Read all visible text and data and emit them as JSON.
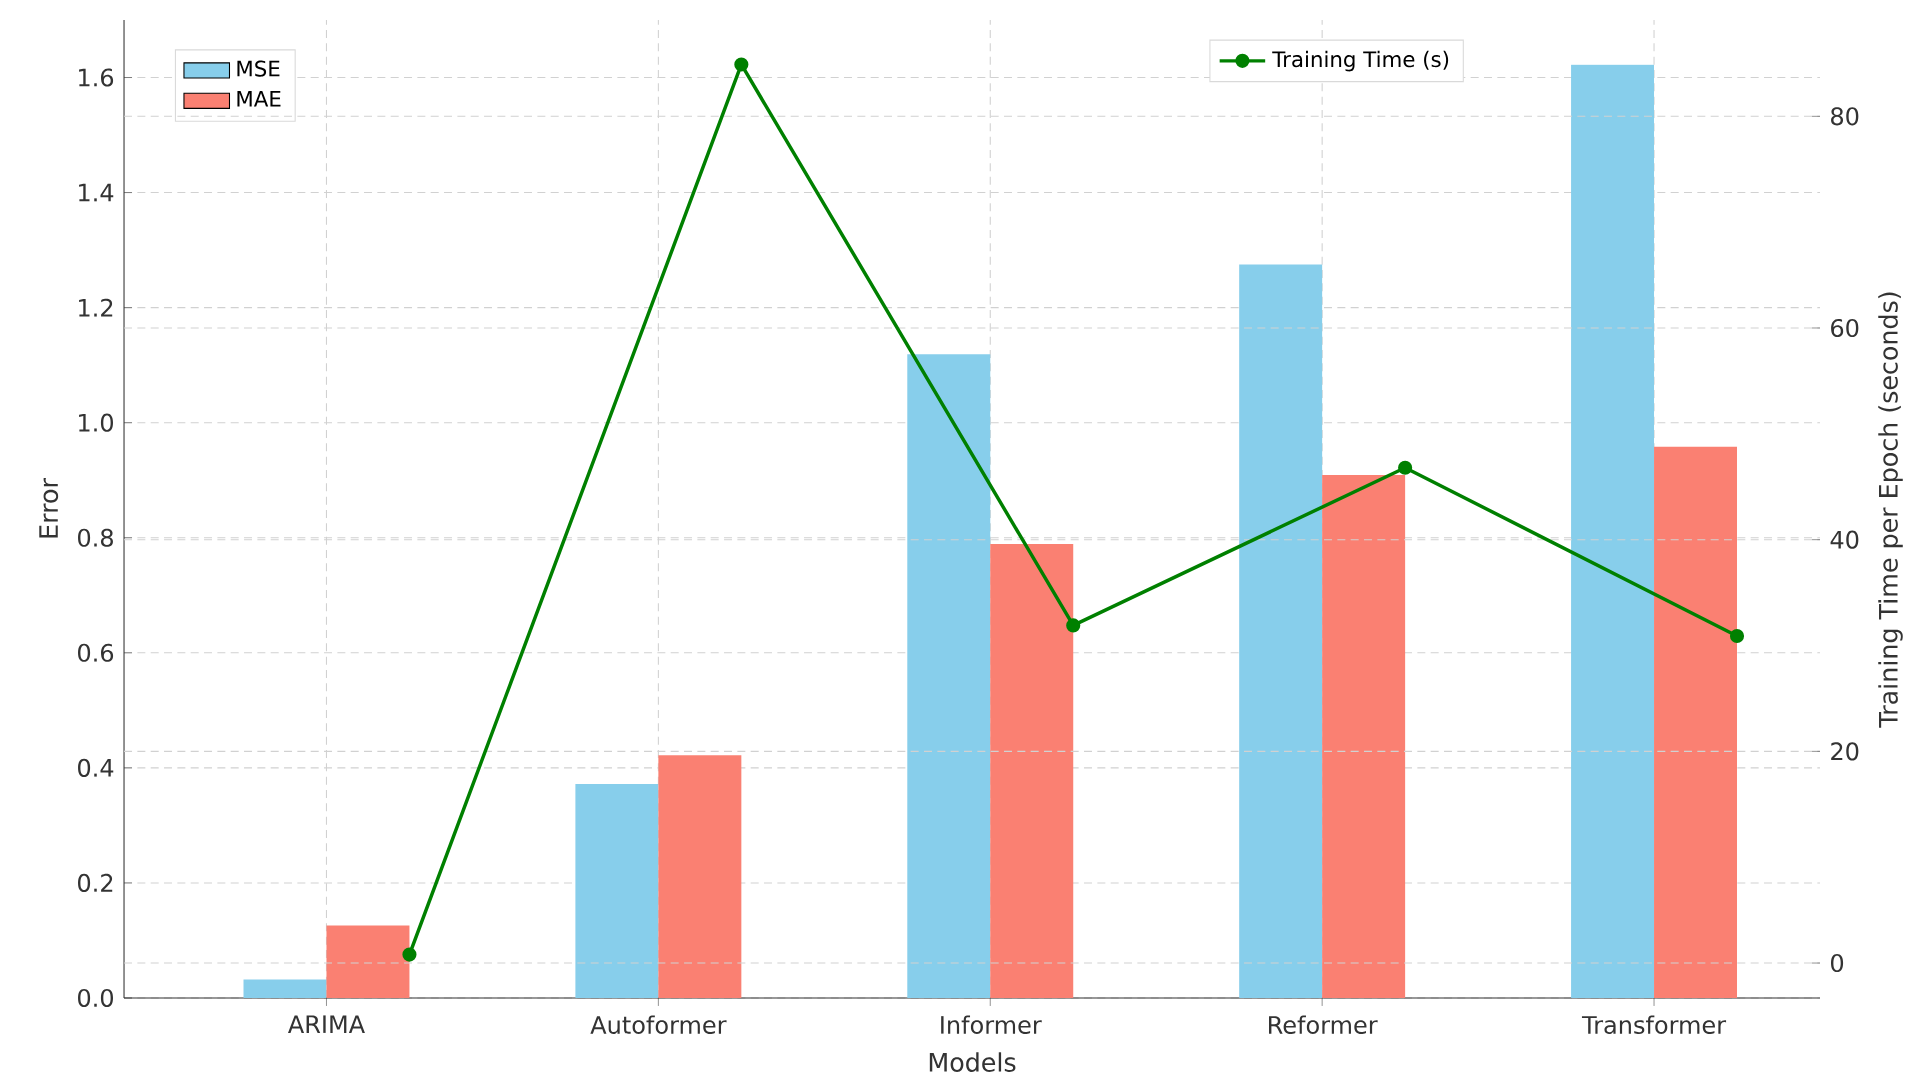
{
  "chart_data": {
    "type": "bar",
    "xlabel": "Models",
    "ylabel": "Error",
    "y2label": "Training Time per Epoch (seconds)",
    "categories": [
      "ARIMA",
      "Autoformer",
      "Informer",
      "Reformer",
      "Transformer"
    ],
    "series": [
      {
        "name": "MSE",
        "color": "#87ceeb",
        "values": [
          0.032,
          0.372,
          1.119,
          1.275,
          1.622
        ]
      },
      {
        "name": "MAE",
        "color": "#fa8072",
        "values": [
          0.126,
          0.422,
          0.789,
          0.909,
          0.958
        ]
      },
      {
        "name": "Training Time (s)",
        "type": "line",
        "axis": "y2",
        "color": "#008000",
        "marker": "circle",
        "values": [
          0.8,
          84.9,
          31.9,
          46.8,
          30.9
        ]
      }
    ],
    "ylim": [
      0,
      1.7
    ],
    "yticks": [
      {
        "value": 0,
        "label": "0.0"
      },
      {
        "value": 0.2,
        "label": "0.2"
      },
      {
        "value": 0.4,
        "label": "0.4"
      },
      {
        "value": 0.6,
        "label": "0.6"
      },
      {
        "value": 0.8,
        "label": "0.8"
      },
      {
        "value": 1.0,
        "label": "1.0"
      },
      {
        "value": 1.2,
        "label": "1.2"
      },
      {
        "value": 1.4,
        "label": "1.4"
      },
      {
        "value": 1.6,
        "label": "1.6"
      }
    ],
    "y2lim": [
      -3.3,
      89.1
    ],
    "y2ticks": [
      0,
      20,
      40,
      60,
      80
    ],
    "grid": true,
    "legend": "top left"
  }
}
